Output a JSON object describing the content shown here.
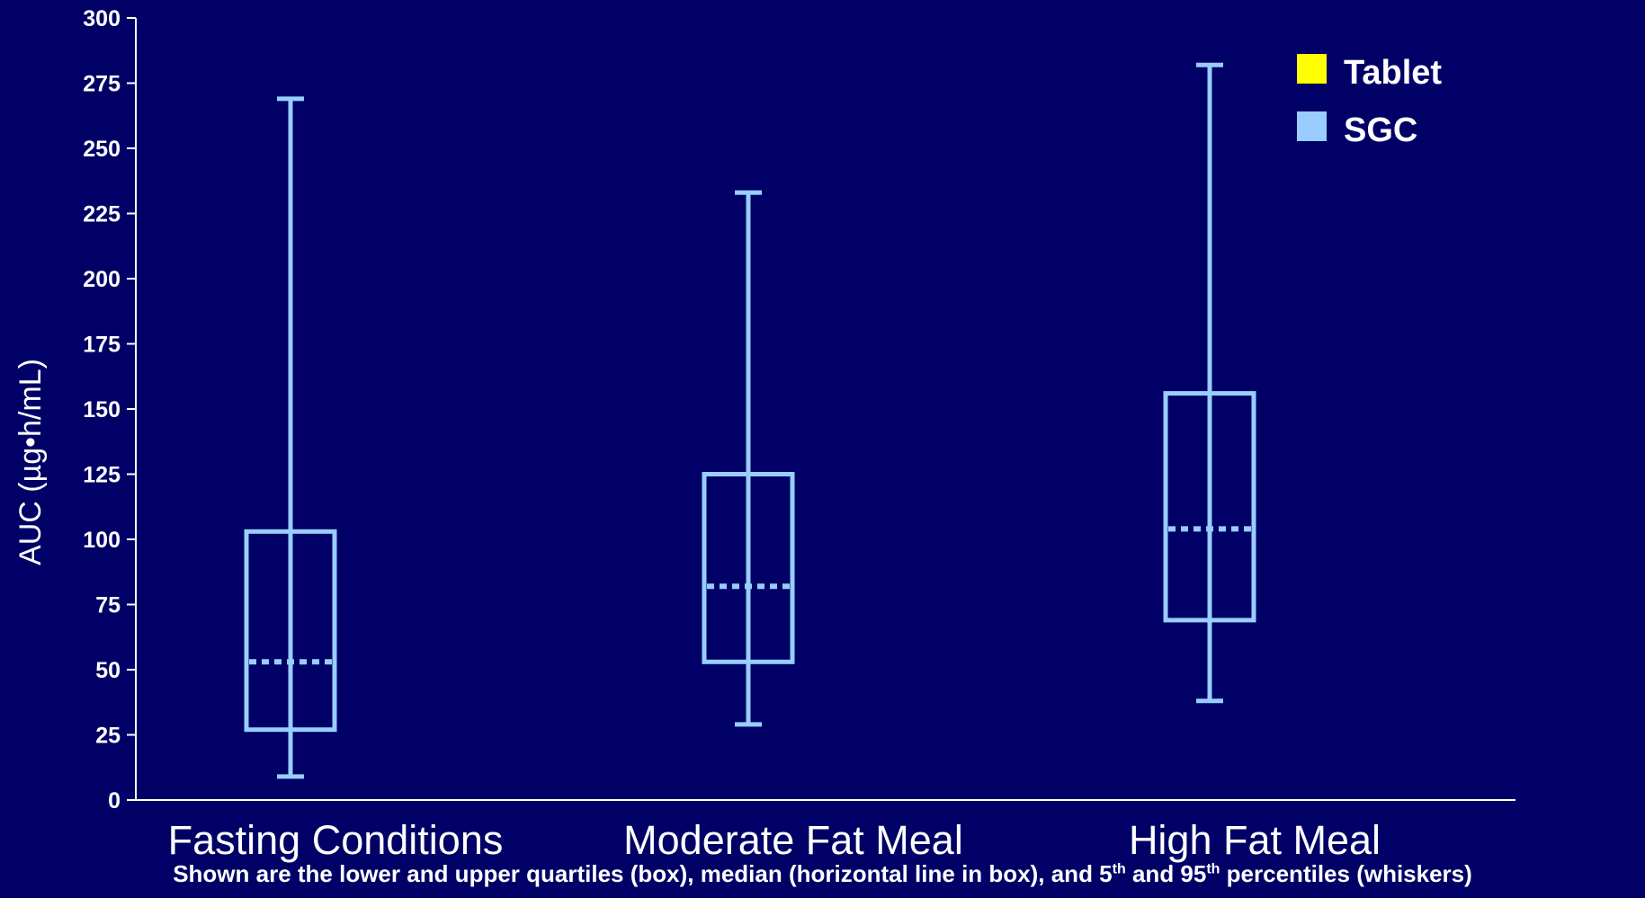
{
  "chart_data": {
    "type": "box",
    "ylabel": "AUC (µg•h/mL)",
    "ylim": [
      0,
      300
    ],
    "yticks": [
      "0",
      "25",
      "50",
      "75",
      "100",
      "125",
      "150",
      "175",
      "200",
      "225",
      "250",
      "275",
      "300"
    ],
    "categories": [
      "Fasting Conditions",
      "Moderate Fat Meal",
      "High Fat Meal"
    ],
    "series": [
      {
        "name": "SGC",
        "color": "#99ccff",
        "boxes": [
          {
            "category": "Fasting Conditions",
            "p5": 9,
            "q1": 27,
            "median": 53,
            "q3": 103,
            "p95": 269
          },
          {
            "category": "Moderate Fat Meal",
            "p5": 29,
            "q1": 53,
            "median": 82,
            "q3": 125,
            "p95": 233
          },
          {
            "category": "High Fat Meal",
            "p5": 38,
            "q1": 69,
            "median": 104,
            "q3": 156,
            "p95": 282
          }
        ]
      }
    ],
    "legend": {
      "position": "top-right",
      "entries": [
        {
          "label": "Tablet",
          "color": "#ffff00"
        },
        {
          "label": "SGC",
          "color": "#99ccff"
        }
      ]
    },
    "grid": false
  },
  "footnote": {
    "part1": "Shown are the lower and upper quartiles (box), median (horizontal line in box), and 5",
    "sup1": "th",
    "part2": " and 95",
    "sup2": "th",
    "part3": " percentiles (whiskers)"
  }
}
